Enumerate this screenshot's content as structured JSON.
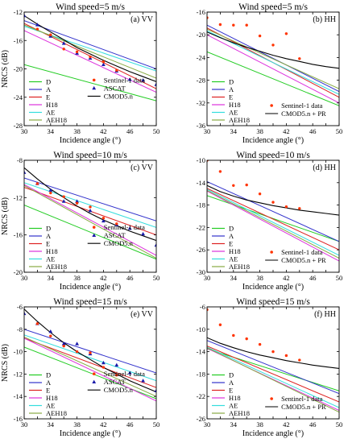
{
  "legend_names": {
    "D": "D",
    "A": "A",
    "E": "E",
    "H18": "H18",
    "AE": "AE",
    "AEH18": "AEH18"
  },
  "colors": {
    "D": "#22cc22",
    "A": "#3333cc",
    "E": "#dd2222",
    "H18": "#dd33dd",
    "AE": "#33dddd",
    "AEH18": "#88aa44",
    "sentinel": "#ff3300",
    "ascat": "#1a1aaa",
    "cmod": "#000000"
  },
  "chart_data": [
    {
      "id": "a",
      "type": "line",
      "title": "Wind speed=5 m/s",
      "panel_label": "(a) VV",
      "xlabel": "Incidence angle (°)",
      "ylabel": "NRCS (dB)",
      "xlim": [
        30,
        50
      ],
      "ylim": [
        -28,
        -12
      ],
      "xticks": [
        30,
        32,
        34,
        36,
        38,
        40,
        42,
        44,
        46,
        48,
        50
      ],
      "xtick_labels": [
        "30",
        "",
        "34",
        "",
        "38",
        "",
        "42",
        "",
        "46",
        "",
        "50"
      ],
      "yticks": [
        -28,
        -24,
        -20,
        -16,
        -12
      ],
      "ytick_labels": [
        "-28",
        "-24",
        "-20",
        "-16",
        "-12"
      ],
      "series": [
        {
          "name": "D",
          "x": [
            30,
            50
          ],
          "y": [
            -19.4,
            -24.5
          ]
        },
        {
          "name": "A",
          "x": [
            30,
            50
          ],
          "y": [
            -13.2,
            -20.0
          ]
        },
        {
          "name": "E",
          "x": [
            30,
            50
          ],
          "y": [
            -13.6,
            -22.8
          ]
        },
        {
          "name": "H18",
          "x": [
            30,
            50
          ],
          "y": [
            -14.6,
            -23.3
          ]
        },
        {
          "name": "AE",
          "x": [
            30,
            50
          ],
          "y": [
            -14.0,
            -20.3
          ]
        },
        {
          "name": "AEH18",
          "x": [
            30,
            50
          ],
          "y": [
            -13.8,
            -21.3
          ]
        }
      ],
      "cmod": {
        "name": "CMOD5.n",
        "x": [
          30,
          32,
          34,
          36,
          38,
          40,
          42,
          44,
          46,
          48,
          50
        ],
        "y": [
          -12.5,
          -13.7,
          -14.8,
          -15.9,
          -17.0,
          -17.9,
          -18.8,
          -19.6,
          -20.4,
          -21.1,
          -21.8
        ]
      },
      "sentinel": {
        "name": "Sentinel-1 data",
        "x": [
          32,
          34,
          36,
          38,
          40,
          42,
          44
        ],
        "y": [
          -14.4,
          -15.2,
          -17.2,
          -17.6,
          -18.3,
          -19.0,
          -20.2
        ]
      },
      "ascat": {
        "name": "ASCAT",
        "x": [
          30,
          32,
          34,
          36,
          38,
          40,
          42,
          44,
          46,
          48,
          50
        ],
        "y": [
          -12.5,
          -13.8,
          -15.4,
          -16.4,
          -17.8,
          -18.5,
          -19.4,
          -20.3,
          -21.5,
          -21.6,
          -22.2
        ]
      },
      "legend_left": [
        "D",
        "A",
        "E",
        "H18",
        "AE",
        "AEH18"
      ],
      "legend_right": [
        {
          "kind": "sentinel",
          "label": "Sentinel-1 data"
        },
        {
          "kind": "ascat",
          "label": "ASCAT"
        },
        {
          "kind": "cmod",
          "label": "CMOD5.n"
        }
      ]
    },
    {
      "id": "b",
      "type": "line",
      "title": "Wind speed=5 m/s",
      "panel_label": "(b) HH",
      "xlabel": "Incidence angle (°)",
      "ylabel": "",
      "xlim": [
        30,
        50
      ],
      "ylim": [
        -36,
        -16
      ],
      "xticks": [
        30,
        32,
        34,
        36,
        38,
        40,
        42,
        44,
        46,
        48,
        50
      ],
      "xtick_labels": [
        "30",
        "",
        "34",
        "",
        "38",
        "",
        "42",
        "",
        "46",
        "",
        "50"
      ],
      "yticks": [
        -36,
        -32,
        -28,
        -24,
        -20,
        -16
      ],
      "ytick_labels": [
        "-36",
        "-32",
        "-28",
        "-24",
        "-20",
        "-16"
      ],
      "series": [
        {
          "name": "D",
          "x": [
            30,
            50
          ],
          "y": [
            -23.0,
            -32.5
          ]
        },
        {
          "name": "A",
          "x": [
            30,
            50
          ],
          "y": [
            -18.3,
            -30.0
          ]
        },
        {
          "name": "E",
          "x": [
            30,
            50
          ],
          "y": [
            -18.8,
            -31.0
          ]
        },
        {
          "name": "H18",
          "x": [
            30,
            50
          ],
          "y": [
            -20.0,
            -32.0
          ]
        },
        {
          "name": "AE",
          "x": [
            30,
            50
          ],
          "y": [
            -19.3,
            -30.5
          ]
        },
        {
          "name": "AEH18",
          "x": [
            30,
            50
          ],
          "y": [
            -19.0,
            -29.5
          ]
        }
      ],
      "cmod": {
        "name": "CMOD5.n + PR",
        "x": [
          30,
          32,
          34,
          36,
          38,
          40,
          42,
          44,
          46,
          48,
          50
        ],
        "y": [
          -19.5,
          -20.5,
          -21.4,
          -22.2,
          -22.9,
          -23.6,
          -24.2,
          -24.7,
          -25.2,
          -25.6,
          -25.9
        ]
      },
      "sentinel": {
        "name": "Sentinel-1 data",
        "x": [
          30,
          32,
          34,
          36,
          38,
          40,
          42,
          44
        ],
        "y": [
          -17.0,
          -18.2,
          -18.3,
          -18.3,
          -20.2,
          -21.8,
          -19.8,
          -24.2
        ]
      },
      "ascat": null,
      "legend_left": [
        "D",
        "A",
        "E",
        "H18",
        "AE",
        "AEH18"
      ],
      "legend_right": [
        {
          "kind": "sentinel",
          "label": "Sentinel-1 data"
        },
        {
          "kind": "cmod",
          "label": "CMOD5.n + PR"
        }
      ]
    },
    {
      "id": "c",
      "type": "line",
      "title": "Wind speed=10 m/s",
      "panel_label": "(c) VV",
      "xlabel": "Incidence angle (°)",
      "ylabel": "NRCS (dB)",
      "xlim": [
        30,
        50
      ],
      "ylim": [
        -20,
        -8
      ],
      "xticks": [
        30,
        32,
        34,
        36,
        38,
        40,
        42,
        44,
        46,
        48,
        50
      ],
      "xtick_labels": [
        "30",
        "",
        "34",
        "",
        "38",
        "",
        "42",
        "",
        "46",
        "",
        "50"
      ],
      "yticks": [
        -20,
        -16,
        -12,
        -8
      ],
      "ytick_labels": [
        "-20",
        "-16",
        "-12",
        "-8"
      ],
      "series": [
        {
          "name": "D",
          "x": [
            30,
            50
          ],
          "y": [
            -12.8,
            -18.6
          ]
        },
        {
          "name": "A",
          "x": [
            30,
            50
          ],
          "y": [
            -9.9,
            -14.5
          ]
        },
        {
          "name": "E",
          "x": [
            30,
            50
          ],
          "y": [
            -10.9,
            -16.0
          ]
        },
        {
          "name": "H18",
          "x": [
            30,
            50
          ],
          "y": [
            -10.6,
            -18.2
          ]
        },
        {
          "name": "AE",
          "x": [
            30,
            50
          ],
          "y": [
            -10.4,
            -15.2
          ]
        },
        {
          "name": "AEH18",
          "x": [
            30,
            50
          ],
          "y": [
            -10.7,
            -18.5
          ]
        }
      ],
      "cmod": {
        "name": "CMOD5.n",
        "x": [
          30,
          32,
          34,
          36,
          38,
          40,
          42,
          44,
          46,
          48,
          50
        ],
        "y": [
          -8.8,
          -10.0,
          -11.1,
          -12.0,
          -12.9,
          -13.7,
          -14.4,
          -15.0,
          -15.6,
          -16.1,
          -16.6
        ]
      },
      "sentinel": {
        "name": "Sentinel-1 data",
        "x": [
          32,
          34,
          36,
          38,
          40,
          42,
          44
        ],
        "y": [
          -10.5,
          -11.5,
          -11.9,
          -12.6,
          -13.0,
          -14.2,
          -14.8
        ]
      },
      "ascat": {
        "name": "ASCAT",
        "x": [
          30,
          32,
          34,
          36,
          38,
          40,
          42,
          44,
          46,
          48,
          50
        ],
        "y": [
          -9.3,
          -10.5,
          -11.2,
          -12.4,
          -12.4,
          -13.4,
          -14.5,
          -14.9,
          -15.3,
          -15.9,
          -17.1
        ]
      },
      "legend_left": [
        "D",
        "A",
        "E",
        "H18",
        "AE",
        "AEH18"
      ],
      "legend_right": [
        {
          "kind": "sentinel",
          "label": "Sentinel-1 data"
        },
        {
          "kind": "ascat",
          "label": "ASCAT"
        },
        {
          "kind": "cmod",
          "label": "CMOD5.n"
        }
      ]
    },
    {
      "id": "d",
      "type": "line",
      "title": "Wind speed=10 m/s",
      "panel_label": "(d) HH",
      "xlabel": "Incidence angle (°)",
      "ylabel": "",
      "xlim": [
        30,
        50
      ],
      "ylim": [
        -30,
        -10
      ],
      "xticks": [
        30,
        32,
        34,
        36,
        38,
        40,
        42,
        44,
        46,
        48,
        50
      ],
      "xtick_labels": [
        "30",
        "",
        "34",
        "",
        "38",
        "",
        "42",
        "",
        "46",
        "",
        "50"
      ],
      "yticks": [
        -30,
        -26,
        -22,
        -18,
        -14,
        -10
      ],
      "ytick_labels": [
        "-30",
        "-26",
        "-22",
        "-18",
        "-14",
        "-10"
      ],
      "series": [
        {
          "name": "D",
          "x": [
            30,
            50
          ],
          "y": [
            -16.3,
            -24.5
          ]
        },
        {
          "name": "A",
          "x": [
            30,
            50
          ],
          "y": [
            -13.8,
            -24.5
          ]
        },
        {
          "name": "E",
          "x": [
            30,
            50
          ],
          "y": [
            -15.0,
            -26.0
          ]
        },
        {
          "name": "H18",
          "x": [
            30,
            50
          ],
          "y": [
            -15.5,
            -28.0
          ]
        },
        {
          "name": "AE",
          "x": [
            30,
            50
          ],
          "y": [
            -15.2,
            -27.0
          ]
        },
        {
          "name": "AEH18",
          "x": [
            30,
            50
          ],
          "y": [
            -15.4,
            -27.5
          ]
        }
      ],
      "cmod": {
        "name": "CMOD5.n + PR",
        "x": [
          30,
          32,
          34,
          36,
          38,
          40,
          42,
          44,
          46,
          48,
          50
        ],
        "y": [
          -14.5,
          -15.6,
          -16.4,
          -17.1,
          -17.6,
          -18.1,
          -18.5,
          -18.9,
          -19.2,
          -19.5,
          -19.8
        ]
      },
      "sentinel": {
        "name": "Sentinel-1 data",
        "x": [
          30,
          32,
          34,
          36,
          38,
          40,
          42,
          44
        ],
        "y": [
          -10.0,
          -12.0,
          -14.5,
          -14.4,
          -16.0,
          -17.5,
          -18.3,
          -18.6
        ]
      },
      "ascat": null,
      "legend_left": [
        "D",
        "A",
        "E",
        "H18",
        "AE",
        "AEH18"
      ],
      "legend_right": [
        {
          "kind": "sentinel",
          "label": "Sentinel-1 data"
        },
        {
          "kind": "cmod",
          "label": "CMOD5.n + PR"
        }
      ]
    },
    {
      "id": "e",
      "type": "line",
      "title": "Wind speed=15 m/s",
      "panel_label": "(e) VV",
      "xlabel": "Incidence angle (°)",
      "ylabel": "NRCS (dB)",
      "xlim": [
        30,
        50
      ],
      "ylim": [
        -16,
        -6
      ],
      "xticks": [
        30,
        32,
        34,
        36,
        38,
        40,
        42,
        44,
        46,
        48,
        50
      ],
      "xtick_labels": [
        "30",
        "",
        "34",
        "",
        "38",
        "",
        "42",
        "",
        "46",
        "",
        "50"
      ],
      "yticks": [
        -16,
        -14,
        -12,
        -10,
        -8,
        -6
      ],
      "ytick_labels": [
        "-16",
        "-14",
        "-12",
        "-10",
        "-8",
        "-6"
      ],
      "series": [
        {
          "name": "D",
          "x": [
            30,
            50
          ],
          "y": [
            -9.6,
            -14.2
          ]
        },
        {
          "name": "A",
          "x": [
            30,
            50
          ],
          "y": [
            -8.0,
            -11.9
          ]
        },
        {
          "name": "E",
          "x": [
            30,
            50
          ],
          "y": [
            -8.8,
            -13.2
          ]
        },
        {
          "name": "H18",
          "x": [
            30,
            50
          ],
          "y": [
            -8.8,
            -14.4
          ]
        },
        {
          "name": "AE",
          "x": [
            30,
            50
          ],
          "y": [
            -8.5,
            -12.6
          ]
        },
        {
          "name": "AEH18",
          "x": [
            30,
            50
          ],
          "y": [
            -8.7,
            -14.0
          ]
        }
      ],
      "cmod": {
        "name": "CMOD5.n",
        "x": [
          30,
          32,
          34,
          36,
          38,
          40,
          42,
          44,
          46,
          48,
          50
        ],
        "y": [
          -6.2,
          -7.3,
          -8.3,
          -9.2,
          -10.0,
          -10.7,
          -11.4,
          -12.0,
          -12.6,
          -13.1,
          -13.6
        ]
      },
      "sentinel": {
        "name": "Sentinel-1 data",
        "x": [
          32,
          34,
          36,
          38,
          40,
          42,
          44
        ],
        "y": [
          -7.5,
          -8.6,
          -9.5,
          -10.0,
          -10.1,
          -11.4,
          -12.1
        ]
      },
      "ascat": {
        "name": "ASCAT",
        "x": [
          30,
          32,
          34,
          36,
          38,
          40,
          42,
          44,
          46,
          48,
          50
        ],
        "y": [
          -6.6,
          -7.5,
          -8.2,
          -9.3,
          -9.3,
          -10.2,
          -11.0,
          -11.2,
          -11.9,
          -12.6,
          -13.5
        ]
      },
      "legend_left": [
        "D",
        "A",
        "E",
        "H18",
        "AE",
        "AEH18"
      ],
      "legend_right": [
        {
          "kind": "sentinel",
          "label": "Sentinel-1 data"
        },
        {
          "kind": "ascat",
          "label": "ASCAT"
        },
        {
          "kind": "cmod",
          "label": "CMOD5.n"
        }
      ]
    },
    {
      "id": "f",
      "type": "line",
      "title": "Wind speed=15 m/s",
      "panel_label": "(f) HH",
      "xlabel": "Incidence angle (°)",
      "ylabel": "",
      "xlim": [
        30,
        50
      ],
      "ylim": [
        -26,
        -6
      ],
      "xticks": [
        30,
        32,
        34,
        36,
        38,
        40,
        42,
        44,
        46,
        48,
        50
      ],
      "xtick_labels": [
        "30",
        "",
        "34",
        "",
        "38",
        "",
        "42",
        "",
        "46",
        "",
        "50"
      ],
      "yticks": [
        -26,
        -22,
        -18,
        -14,
        -10,
        -6
      ],
      "ytick_labels": [
        "-26",
        "-22",
        "-18",
        "-14",
        "-10",
        "-6"
      ],
      "series": [
        {
          "name": "D",
          "x": [
            30,
            50
          ],
          "y": [
            -13.5,
            -21.0
          ]
        },
        {
          "name": "A",
          "x": [
            30,
            50
          ],
          "y": [
            -12.0,
            -21.5
          ]
        },
        {
          "name": "E",
          "x": [
            30,
            50
          ],
          "y": [
            -13.0,
            -23.0
          ]
        },
        {
          "name": "H18",
          "x": [
            30,
            50
          ],
          "y": [
            -13.4,
            -24.5
          ]
        },
        {
          "name": "AE",
          "x": [
            30,
            50
          ],
          "y": [
            -13.2,
            -24.0
          ]
        },
        {
          "name": "AEH18",
          "x": [
            30,
            50
          ],
          "y": [
            -13.3,
            -24.8
          ]
        }
      ],
      "cmod": {
        "name": "CMOD5.n + PR",
        "x": [
          30,
          32,
          34,
          36,
          38,
          40,
          42,
          44,
          46,
          48,
          50
        ],
        "y": [
          -11.5,
          -12.5,
          -13.3,
          -14.0,
          -14.6,
          -15.1,
          -15.6,
          -16.0,
          -16.4,
          -16.7,
          -17.0
        ]
      },
      "sentinel": {
        "name": "Sentinel-1 data",
        "x": [
          30,
          32,
          34,
          36,
          38,
          40,
          42,
          44
        ],
        "y": [
          -6.5,
          -9.2,
          -11.1,
          -11.7,
          -12.7,
          -14.0,
          -14.7,
          -15.5
        ]
      },
      "ascat": null,
      "legend_left": [
        "D",
        "A",
        "E",
        "H18",
        "AE",
        "AEH18"
      ],
      "legend_right": [
        {
          "kind": "sentinel",
          "label": "Sentinel-1 data"
        },
        {
          "kind": "cmod",
          "label": "CMOD5.n + PR"
        }
      ]
    }
  ]
}
